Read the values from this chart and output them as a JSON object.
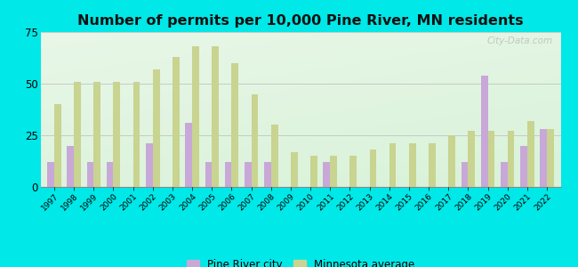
{
  "title": "Number of permits per 10,000 Pine River, MN residents",
  "years": [
    1997,
    1998,
    1999,
    2000,
    2001,
    2002,
    2003,
    2004,
    2005,
    2006,
    2007,
    2008,
    2009,
    2010,
    2011,
    2012,
    2013,
    2014,
    2015,
    2016,
    2017,
    2018,
    2019,
    2020,
    2021,
    2022
  ],
  "pine_river": [
    12,
    20,
    12,
    12,
    0,
    21,
    0,
    31,
    12,
    12,
    12,
    12,
    0,
    0,
    12,
    0,
    0,
    0,
    0,
    0,
    0,
    12,
    54,
    12,
    20,
    28
  ],
  "mn_average": [
    40,
    51,
    51,
    51,
    51,
    57,
    63,
    68,
    68,
    60,
    45,
    30,
    17,
    15,
    15,
    15,
    18,
    21,
    21,
    21,
    25,
    27,
    27,
    27,
    32,
    28
  ],
  "pine_river_color": "#c8a8d8",
  "mn_avg_color": "#c8d490",
  "background_outer": "#00e8e8",
  "ylim": [
    0,
    75
  ],
  "yticks": [
    0,
    25,
    50,
    75
  ],
  "legend_pine_label": "Pine River city",
  "legend_mn_label": "Minnesota average",
  "bar_width": 0.35,
  "title_fontsize": 11.5
}
